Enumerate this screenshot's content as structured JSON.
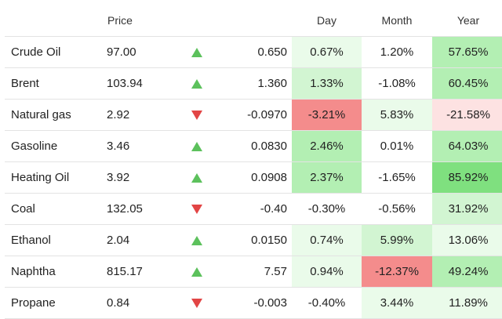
{
  "colors": {
    "up": "#5cc15c",
    "down": "#e24545",
    "heat": {
      "g1": "#eafbea",
      "g2": "#d2f5d2",
      "g3": "#b3efb3",
      "g4": "#7fe07f",
      "r1": "#fde2e2",
      "r2": "#f48c8c",
      "none": "#ffffff"
    }
  },
  "table": {
    "headers": {
      "price": "Price",
      "day": "Day",
      "month": "Month",
      "year": "Year"
    },
    "rows": [
      {
        "name": "Crude Oil",
        "price": "97.00",
        "direction": "up",
        "change": "0.650",
        "day": "0.67%",
        "month": "1.20%",
        "year": "57.65%",
        "day_heat": "g1",
        "month_heat": "none",
        "year_heat": "g3"
      },
      {
        "name": "Brent",
        "price": "103.94",
        "direction": "up",
        "change": "1.360",
        "day": "1.33%",
        "month": "-1.08%",
        "year": "60.45%",
        "day_heat": "g2",
        "month_heat": "none",
        "year_heat": "g3"
      },
      {
        "name": "Natural gas",
        "price": "2.92",
        "direction": "down",
        "change": "-0.0970",
        "day": "-3.21%",
        "month": "5.83%",
        "year": "-21.58%",
        "day_heat": "r2",
        "month_heat": "g1",
        "year_heat": "r1"
      },
      {
        "name": "Gasoline",
        "price": "3.46",
        "direction": "up",
        "change": "0.0830",
        "day": "2.46%",
        "month": "0.01%",
        "year": "64.03%",
        "day_heat": "g3",
        "month_heat": "none",
        "year_heat": "g3"
      },
      {
        "name": "Heating Oil",
        "price": "3.92",
        "direction": "up",
        "change": "0.0908",
        "day": "2.37%",
        "month": "-1.65%",
        "year": "85.92%",
        "day_heat": "g3",
        "month_heat": "none",
        "year_heat": "g4"
      },
      {
        "name": "Coal",
        "price": "132.05",
        "direction": "down",
        "change": "-0.40",
        "day": "-0.30%",
        "month": "-0.56%",
        "year": "31.92%",
        "day_heat": "none",
        "month_heat": "none",
        "year_heat": "g2"
      },
      {
        "name": "Ethanol",
        "price": "2.04",
        "direction": "up",
        "change": "0.0150",
        "day": "0.74%",
        "month": "5.99%",
        "year": "13.06%",
        "day_heat": "g1",
        "month_heat": "g2",
        "year_heat": "g1"
      },
      {
        "name": "Naphtha",
        "price": "815.17",
        "direction": "up",
        "change": "7.57",
        "day": "0.94%",
        "month": "-12.37%",
        "year": "49.24%",
        "day_heat": "g1",
        "month_heat": "r2",
        "year_heat": "g3"
      },
      {
        "name": "Propane",
        "price": "0.84",
        "direction": "down",
        "change": "-0.003",
        "day": "-0.40%",
        "month": "3.44%",
        "year": "11.89%",
        "day_heat": "none",
        "month_heat": "g1",
        "year_heat": "g1"
      }
    ]
  }
}
